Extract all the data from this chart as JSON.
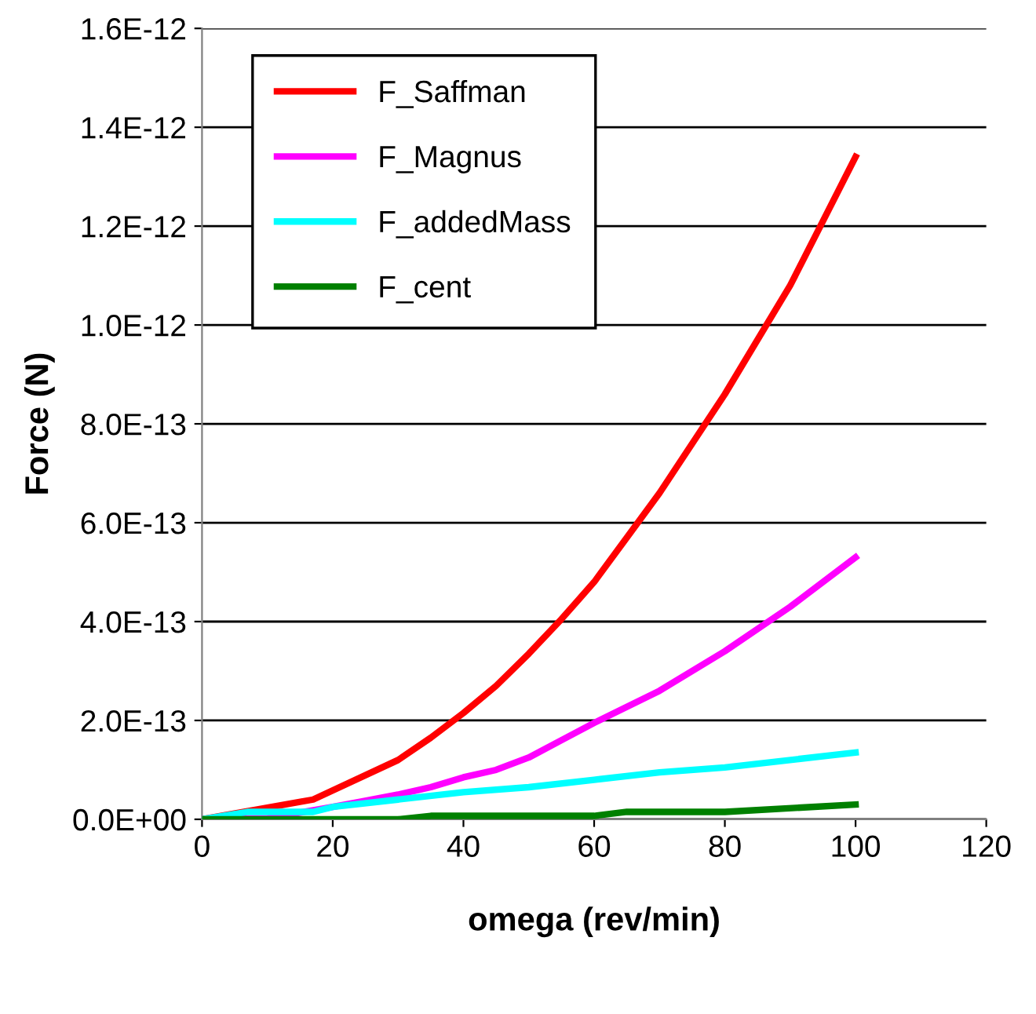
{
  "chart_data": {
    "type": "line",
    "xlabel": "omega (rev/min)",
    "ylabel": "Force (N)",
    "xlim": [
      0,
      120
    ],
    "xticks": [
      0,
      20,
      40,
      60,
      80,
      100,
      120
    ],
    "ylim": [
      0,
      1.6e-12
    ],
    "yticks": [
      {
        "value": 0,
        "label": "0.0E+00"
      },
      {
        "value": 2e-13,
        "label": "2.0E-13"
      },
      {
        "value": 4e-13,
        "label": "4.0E-13"
      },
      {
        "value": 6e-13,
        "label": "6.0E-13"
      },
      {
        "value": 8e-13,
        "label": "8.0E-13"
      },
      {
        "value": 1e-12,
        "label": "1.0E-12"
      },
      {
        "value": 1.2e-12,
        "label": "1.2E-12"
      },
      {
        "value": 1.4e-12,
        "label": "1.4E-12"
      },
      {
        "value": 1.6e-12,
        "label": "1.6E-12"
      }
    ],
    "grid": "y",
    "legend": "top left",
    "marker": "none",
    "line_style": "solid",
    "series": [
      {
        "name": "F_Saffman",
        "color": "#ff0000",
        "x": [
          0,
          17,
          30,
          35,
          40,
          45,
          50,
          55,
          60,
          65,
          70,
          75,
          80,
          90,
          100
        ],
        "values": [
          0,
          4e-14,
          1.2e-13,
          1.65e-13,
          2.15e-13,
          2.7e-13,
          3.35e-13,
          4.05e-13,
          4.8e-13,
          5.7e-13,
          6.6e-13,
          7.6e-13,
          8.6e-13,
          1.08e-12,
          1.34e-12
        ]
      },
      {
        "name": "F_Magnus",
        "color": "#ff00ff",
        "x": [
          0,
          10,
          20,
          30,
          35,
          40,
          45,
          50,
          55,
          60,
          70,
          80,
          90,
          100
        ],
        "values": [
          0,
          2e-15,
          2.5e-14,
          5e-14,
          6.5e-14,
          8.5e-14,
          1e-13,
          1.25e-13,
          1.6e-13,
          1.95e-13,
          2.6e-13,
          3.4e-13,
          4.3e-13,
          5.3e-13
        ]
      },
      {
        "name": "F_addedMass",
        "color": "#00ffff",
        "x": [
          0,
          7,
          17,
          20,
          30,
          40,
          50,
          60,
          70,
          80,
          100
        ],
        "values": [
          0,
          1.5e-14,
          1.5e-14,
          2.5e-14,
          4e-14,
          5.5e-14,
          6.5e-14,
          8e-14,
          9.5e-14,
          1.05e-13,
          1.35e-13
        ]
      },
      {
        "name": "F_cent",
        "color": "#008000",
        "x": [
          0,
          30,
          35,
          60,
          65,
          80,
          100
        ],
        "values": [
          0,
          0,
          7e-15,
          7e-15,
          1.5e-14,
          1.5e-14,
          3e-14
        ]
      }
    ]
  }
}
